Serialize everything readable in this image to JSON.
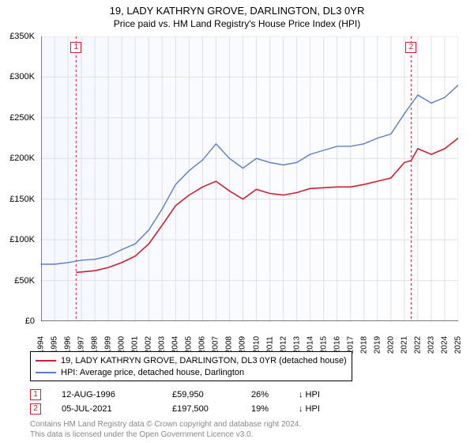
{
  "title": "19, LADY KATHRYN GROVE, DARLINGTON, DL3 0YR",
  "subtitle": "Price paid vs. HM Land Registry's House Price Index (HPI)",
  "chart": {
    "type": "line",
    "background_color": "#ffffff",
    "grid_color": "#e0e0e0",
    "gradient_start": "#f5f8ff",
    "gradient_end": "#ffffff",
    "ylim": [
      0,
      350000
    ],
    "ytick_step": 50000,
    "y_ticks": [
      "£0",
      "£50K",
      "£100K",
      "£150K",
      "£200K",
      "£250K",
      "£300K",
      "£350K"
    ],
    "x_years": [
      1994,
      1995,
      1996,
      1997,
      1998,
      1999,
      2000,
      2001,
      2002,
      2003,
      2004,
      2005,
      2006,
      2007,
      2008,
      2009,
      2010,
      2011,
      2012,
      2013,
      2014,
      2015,
      2016,
      2017,
      2018,
      2019,
      2020,
      2021,
      2022,
      2023,
      2024,
      2025
    ],
    "marker_lines": [
      {
        "x_year": 1996.6,
        "color": "#d02030",
        "label": "1"
      },
      {
        "x_year": 2021.5,
        "color": "#d02030",
        "label": "2"
      }
    ],
    "series": [
      {
        "name": "hpi",
        "color": "#5b7fc7",
        "width": 1.4,
        "points": [
          [
            1994,
            70000
          ],
          [
            1995,
            70000
          ],
          [
            1996,
            72000
          ],
          [
            1997,
            75000
          ],
          [
            1998,
            76000
          ],
          [
            1999,
            80000
          ],
          [
            2000,
            88000
          ],
          [
            2001,
            95000
          ],
          [
            2002,
            112000
          ],
          [
            2003,
            138000
          ],
          [
            2004,
            168000
          ],
          [
            2005,
            185000
          ],
          [
            2006,
            198000
          ],
          [
            2007,
            218000
          ],
          [
            2008,
            200000
          ],
          [
            2009,
            188000
          ],
          [
            2010,
            200000
          ],
          [
            2011,
            195000
          ],
          [
            2012,
            192000
          ],
          [
            2013,
            195000
          ],
          [
            2014,
            205000
          ],
          [
            2015,
            210000
          ],
          [
            2016,
            215000
          ],
          [
            2017,
            215000
          ],
          [
            2018,
            218000
          ],
          [
            2019,
            225000
          ],
          [
            2020,
            230000
          ],
          [
            2021,
            255000
          ],
          [
            2022,
            278000
          ],
          [
            2023,
            268000
          ],
          [
            2024,
            275000
          ],
          [
            2025,
            290000
          ]
        ]
      },
      {
        "name": "property",
        "color": "#d02030",
        "width": 1.6,
        "points": [
          [
            1996.6,
            59950
          ],
          [
            1997,
            60500
          ],
          [
            1998,
            62000
          ],
          [
            1999,
            66000
          ],
          [
            2000,
            72000
          ],
          [
            2001,
            80000
          ],
          [
            2002,
            95000
          ],
          [
            2003,
            118000
          ],
          [
            2004,
            142000
          ],
          [
            2005,
            155000
          ],
          [
            2006,
            165000
          ],
          [
            2007,
            172000
          ],
          [
            2008,
            160000
          ],
          [
            2009,
            150000
          ],
          [
            2010,
            162000
          ],
          [
            2011,
            157000
          ],
          [
            2012,
            155000
          ],
          [
            2013,
            158000
          ],
          [
            2014,
            163000
          ],
          [
            2015,
            164000
          ],
          [
            2016,
            165000
          ],
          [
            2017,
            165000
          ],
          [
            2018,
            168000
          ],
          [
            2019,
            172000
          ],
          [
            2020,
            176000
          ],
          [
            2021,
            195000
          ],
          [
            2021.5,
            197500
          ],
          [
            2022,
            212000
          ],
          [
            2023,
            205000
          ],
          [
            2024,
            212000
          ],
          [
            2025,
            225000
          ]
        ]
      }
    ]
  },
  "legend": {
    "items": [
      {
        "color": "#d02030",
        "label": "19, LADY KATHRYN GROVE, DARLINGTON, DL3 0YR (detached house)"
      },
      {
        "color": "#5b7fc7",
        "label": "HPI: Average price, detached house, Darlington"
      }
    ]
  },
  "transactions": [
    {
      "marker": "1",
      "marker_color": "#d02030",
      "date": "12-AUG-1996",
      "price": "£59,950",
      "pct": "26%",
      "rel_icon": "↓",
      "rel_label": "HPI"
    },
    {
      "marker": "2",
      "marker_color": "#d02030",
      "date": "05-JUL-2021",
      "price": "£197,500",
      "pct": "19%",
      "rel_icon": "↓",
      "rel_label": "HPI"
    }
  ],
  "attribution": {
    "line1": "Contains HM Land Registry data © Crown copyright and database right 2024.",
    "line2": "This data is licensed under the Open Government Licence v3.0."
  },
  "label_fontsize": 11
}
